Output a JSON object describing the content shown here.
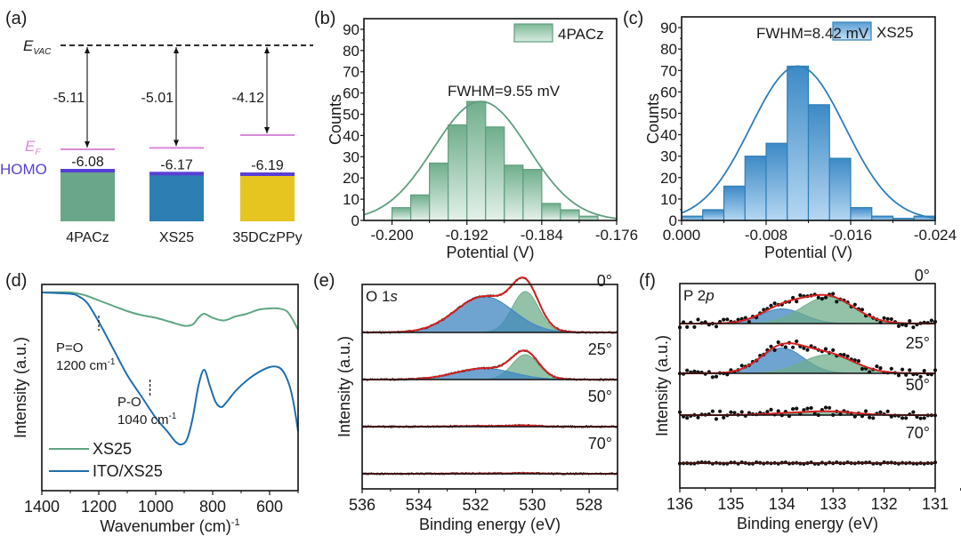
{
  "chart_data": [
    {
      "panel": "(a)",
      "type": "bar",
      "title": "Energy level diagram",
      "vacuum_label": "E",
      "vacuum_label_sub": "VAC",
      "fermi_label": "E",
      "fermi_label_sub": "F",
      "homo_label": "HOMO",
      "categories": [
        "4PACz",
        "XS25",
        "35DCzPPy"
      ],
      "work_function_eV": [
        -5.11,
        -5.01,
        -4.12
      ],
      "work_function_labels": [
        "-5.11",
        "-5.01",
        "-4.12"
      ],
      "homo_eV": [
        -6.08,
        -6.17,
        -6.19
      ],
      "homo_labels": [
        "-6.08",
        "-6.17",
        "-6.19"
      ],
      "colors": [
        "#6aa78a",
        "#2d7fb3",
        "#e6c520"
      ],
      "fermi_color": "#d98ad9",
      "homo_color": "#5a3fd6"
    },
    {
      "panel": "(b)",
      "type": "bar",
      "subtype": "histogram",
      "legend": "4PACz",
      "legend_position": "top-right",
      "annotation": "FWHM=9.55 mV",
      "xlabel": "Potential (V)",
      "ylabel": "Counts",
      "xlim": [
        -0.203,
        -0.176
      ],
      "ylim": [
        0,
        95
      ],
      "xticks": [
        -0.2,
        -0.192,
        -0.184,
        -0.176
      ],
      "xtick_labels": [
        "-0.200",
        "-0.192",
        "-0.184",
        "-0.176"
      ],
      "yticks": [
        0,
        10,
        20,
        30,
        40,
        50,
        60,
        70,
        80,
        90
      ],
      "bin_start": -0.2,
      "bin_width": 0.002,
      "values": [
        6,
        12,
        27,
        45,
        56,
        44,
        26,
        24,
        8,
        5,
        2
      ],
      "fit": {
        "type": "gaussian",
        "center": -0.1905,
        "fwhm": 0.00955,
        "amplitude": 56
      },
      "color": "#5f9e7e"
    },
    {
      "panel": "(c)",
      "type": "bar",
      "subtype": "histogram",
      "legend": "XS25",
      "legend_position": "top-right",
      "annotation": "FWHM=8.42 mV",
      "xlabel": "Potential (V)",
      "ylabel": "Counts",
      "xlim": [
        0.0,
        -0.024
      ],
      "ylim": [
        0,
        95
      ],
      "xticks": [
        0.0,
        -0.008,
        -0.016,
        -0.024
      ],
      "xtick_labels": [
        "0.000",
        "-0.008",
        "-0.016",
        "-0.024"
      ],
      "yticks": [
        0,
        10,
        20,
        30,
        40,
        50,
        60,
        70,
        80,
        90
      ],
      "bin_start": 0.0,
      "bin_width": -0.002,
      "values": [
        2,
        5,
        16,
        30,
        36,
        72,
        54,
        29,
        6,
        2,
        1,
        2
      ],
      "fit": {
        "type": "gaussian",
        "center": -0.011,
        "fwhm": 0.00842,
        "amplitude": 72
      },
      "color": "#2e7fb8"
    },
    {
      "panel": "(d)",
      "type": "line",
      "xlabel": "Wavenumber (cm)",
      "xlabel_sup": "-1",
      "ylabel": "Intensity (a.u.)",
      "xlim": [
        1400,
        500
      ],
      "xticks": [
        1400,
        1200,
        1000,
        800,
        600
      ],
      "xtick_labels": [
        "1400",
        "1200",
        "1000",
        "800",
        "600"
      ],
      "legend_position": "bottom-left",
      "annotations": [
        {
          "label": "P=O",
          "sub": "1200 cm",
          "sup": "-1",
          "x": 1200
        },
        {
          "label": "P-O",
          "sub": "1040 cm",
          "sup": "-1",
          "x": 1020
        }
      ],
      "series": [
        {
          "name": "XS25",
          "color": "#5fa582",
          "x": [
            1400,
            1300,
            1250,
            1200,
            1150,
            1100,
            1050,
            1000,
            950,
            900,
            870,
            850,
            830,
            800,
            760,
            720,
            680,
            640,
            600,
            570,
            540,
            520,
            500
          ],
          "y": [
            0.97,
            0.97,
            0.96,
            0.94,
            0.92,
            0.9,
            0.885,
            0.875,
            0.86,
            0.845,
            0.85,
            0.875,
            0.89,
            0.875,
            0.865,
            0.88,
            0.89,
            0.905,
            0.91,
            0.91,
            0.9,
            0.87,
            0.83
          ]
        },
        {
          "name": "ITO/XS25",
          "color": "#1f6fad",
          "x": [
            1400,
            1300,
            1270,
            1240,
            1200,
            1150,
            1100,
            1050,
            1000,
            960,
            930,
            910,
            890,
            870,
            850,
            830,
            810,
            790,
            770,
            750,
            720,
            680,
            640,
            600,
            570,
            550,
            530,
            515,
            500
          ],
          "y": [
            0.97,
            0.965,
            0.955,
            0.93,
            0.86,
            0.76,
            0.66,
            0.58,
            0.5,
            0.45,
            0.41,
            0.4,
            0.42,
            0.5,
            0.62,
            0.68,
            0.62,
            0.56,
            0.54,
            0.56,
            0.6,
            0.64,
            0.67,
            0.69,
            0.69,
            0.67,
            0.62,
            0.55,
            0.45
          ]
        }
      ]
    },
    {
      "panel": "(e)",
      "type": "area",
      "core_level": "O 1",
      "core_level_orbital": "s",
      "xlabel": "Binding energy (eV)",
      "ylabel": "Intensity (a.u.)",
      "xlim": [
        536,
        527
      ],
      "xticks": [
        536,
        534,
        532,
        530,
        528
      ],
      "xtick_labels": [
        "536",
        "534",
        "532",
        "530",
        "528"
      ],
      "angles": [
        "0°",
        "25°",
        "50°",
        "70°"
      ],
      "components": [
        {
          "name": "component-low-BE",
          "color": "#6fae8c",
          "center": 530.25,
          "fwhm": 1.1
        },
        {
          "name": "component-high-BE",
          "color": "#3f86c0",
          "center": 531.7,
          "fwhm": 2.4
        }
      ],
      "amplitudes": [
        {
          "angle": "0°",
          "low": 1.0,
          "high": 0.88
        },
        {
          "angle": "25°",
          "low": 1.0,
          "high": 0.45
        },
        {
          "angle": "50°",
          "low": 0.2,
          "high": 0.12
        },
        {
          "angle": "70°",
          "low": 0.13,
          "high": 0.09
        }
      ],
      "fit_color": "#d42020",
      "data_color": "#111111"
    },
    {
      "panel": "(f)",
      "type": "scatter",
      "core_level": "P 2",
      "core_level_orbital": "p",
      "xlabel": "Binding energy (eV)",
      "ylabel": "Intensity (a.u.)",
      "xlim": [
        136,
        131
      ],
      "xticks": [
        136,
        135,
        134,
        133,
        132,
        131
      ],
      "xtick_labels": [
        "136",
        "135",
        "134",
        "133",
        "132",
        "131"
      ],
      "angles": [
        "0°",
        "25°",
        "50°",
        "70°"
      ],
      "components": [
        {
          "name": "component-high-BE",
          "color": "#3f86c0",
          "center": 134.0,
          "fwhm": 1.0
        },
        {
          "name": "component-low-BE",
          "color": "#6fae8c",
          "center": 133.1,
          "fwhm": 1.2
        }
      ],
      "amplitudes": [
        {
          "angle": "0°",
          "high": 0.55,
          "low": 1.0
        },
        {
          "angle": "25°",
          "high": 0.95,
          "low": 0.7
        },
        {
          "angle": "50°",
          "high": 0.1,
          "low": 0.3
        },
        {
          "angle": "70°",
          "high": 0.0,
          "low": 0.0
        }
      ],
      "fit_color": "#d42020",
      "data_color": "#111111"
    }
  ],
  "panel_labels": [
    "(a)",
    "(b)",
    "(c)",
    "(d)",
    "(e)",
    "(f)"
  ]
}
